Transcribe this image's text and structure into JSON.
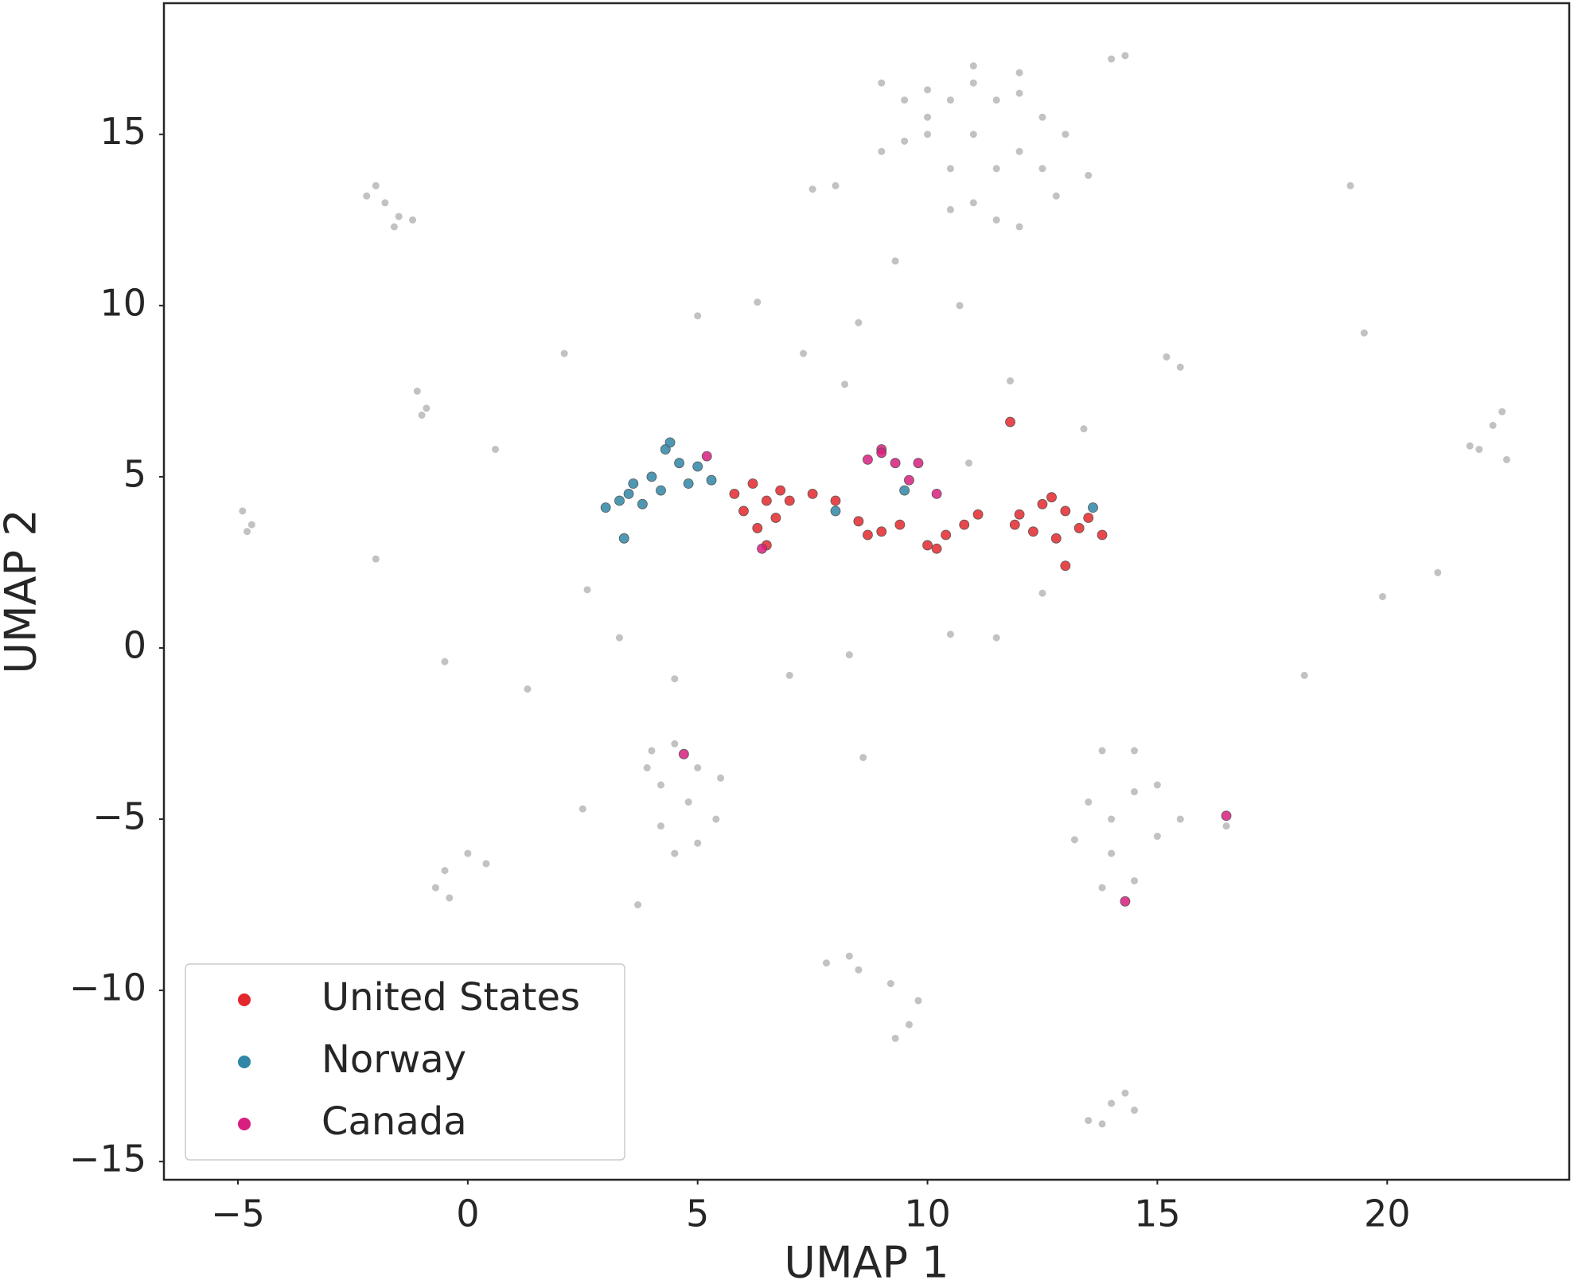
{
  "chart_data": {
    "type": "scatter",
    "xlabel": "UMAP 1",
    "ylabel": "UMAP 2",
    "xlim": [
      -6.61,
      23.96
    ],
    "ylim": [
      -15.53,
      18.83
    ],
    "xticks": [
      {
        "value": -5,
        "label": "−5"
      },
      0,
      5,
      10,
      15,
      20
    ],
    "yticks": [
      {
        "value": -15,
        "label": "−15"
      },
      {
        "value": -10,
        "label": "−10"
      },
      {
        "value": -5,
        "label": "−5"
      },
      0,
      5,
      10,
      15
    ],
    "grid": false,
    "legend": "lower left",
    "series": [
      {
        "color": "#9a9a9a",
        "x": [
          9,
          9.5,
          10,
          10.5,
          11,
          11.5,
          12,
          12.5,
          13,
          12,
          11,
          10,
          9.5,
          9,
          10.5,
          11.5,
          12.5,
          13.5,
          8,
          7.5,
          11,
          11.5,
          12,
          10.5,
          14,
          14.3,
          12.8,
          10,
          11,
          12,
          -2.2,
          -1.8,
          -1.5,
          -1.2,
          -2,
          -1.6,
          -1.1,
          -0.9,
          -1,
          -4.9,
          -4.7,
          -4.8,
          22.3,
          22,
          22.6,
          21.8,
          22.5,
          19.5,
          15.5,
          15.2,
          2.1,
          5,
          6.3,
          7.3,
          8.5,
          8.2,
          9.3,
          10.7,
          11.8,
          13.4,
          10.9,
          2.6,
          3.3,
          -0.5,
          -2,
          4.5,
          7,
          8.3,
          10.5,
          11.5,
          12.5,
          18.2,
          21.1,
          19.9,
          19.2,
          0.6,
          1.3,
          2.5,
          8.6,
          3.7,
          4,
          4.5,
          5,
          5.5,
          4.2,
          4.8,
          5.4,
          4.2,
          5,
          4.5,
          3.9,
          0,
          -0.5,
          -0.7,
          -0.4,
          0.4,
          13.8,
          14.5,
          13.5,
          14,
          14.5,
          15,
          14,
          14.5,
          13.8,
          15.5,
          16.5,
          13.2,
          15,
          7.8,
          8.5,
          9.2,
          9.8,
          9.6,
          9.3,
          8.3,
          13.5,
          14,
          14.5,
          13.8,
          14.3
        ],
        "values": [
          16.5,
          16,
          16.3,
          16,
          16.5,
          16,
          16.2,
          15.5,
          15,
          14.5,
          15,
          15,
          14.8,
          14.5,
          14,
          14,
          14,
          13.8,
          13.5,
          13.4,
          13,
          12.5,
          12.3,
          12.8,
          17.2,
          17.3,
          13.2,
          15.5,
          17,
          16.8,
          13.2,
          13,
          12.6,
          12.5,
          13.5,
          12.3,
          7.5,
          7,
          6.8,
          4,
          3.6,
          3.4,
          6.5,
          5.8,
          5.5,
          5.9,
          6.9,
          9.2,
          8.2,
          8.5,
          8.6,
          9.7,
          10.1,
          8.6,
          9.5,
          7.7,
          11.3,
          10,
          7.8,
          6.4,
          5.4,
          1.7,
          0.3,
          -0.4,
          2.6,
          -0.9,
          -0.8,
          -0.2,
          0.4,
          0.3,
          1.6,
          -0.8,
          2.2,
          1.5,
          13.5,
          5.8,
          -1.2,
          -4.7,
          -3.2,
          -7.5,
          -3,
          -2.8,
          -3.5,
          -3.8,
          -4,
          -4.5,
          -5,
          -5.2,
          -5.7,
          -6,
          -3.5,
          -6,
          -6.5,
          -7,
          -7.3,
          -6.3,
          -3,
          -3,
          -4.5,
          -5,
          -4.2,
          -5.5,
          -6,
          -6.8,
          -7,
          -5,
          -5.2,
          -5.6,
          -4,
          -9.2,
          -9.4,
          -9.8,
          -10.3,
          -11,
          -11.4,
          -9,
          -13.8,
          -13.3,
          -13.5,
          -13.9,
          -13
        ]
      },
      {
        "name": "United States",
        "color": "#e3282d",
        "x": [
          5.8,
          6.2,
          6.5,
          6,
          6.7,
          6.3,
          6.5,
          7,
          7.5,
          8,
          6.8,
          8.5,
          9,
          9.4,
          8.7,
          10,
          10.4,
          10.8,
          11.1,
          10.2,
          12,
          12.5,
          13,
          13.5,
          13.8,
          12.3,
          12.8,
          13.3,
          13,
          12.7,
          11.9,
          11.8
        ],
        "values": [
          4.5,
          4.8,
          4.3,
          4,
          3.8,
          3.5,
          3,
          4.3,
          4.5,
          4.3,
          4.6,
          3.7,
          3.4,
          3.6,
          3.3,
          3,
          3.3,
          3.6,
          3.9,
          2.9,
          3.9,
          4.2,
          4,
          3.8,
          3.3,
          3.4,
          3.2,
          3.5,
          2.4,
          4.4,
          3.6,
          6.6
        ]
      },
      {
        "name": "Norway",
        "color": "#2f86a6",
        "x": [
          3,
          3.5,
          4,
          4.3,
          4.6,
          4.2,
          3.8,
          3.3,
          4.8,
          5,
          4.4,
          3.6,
          3.4,
          5.3,
          13.6,
          9.5,
          8
        ],
        "values": [
          4.1,
          4.5,
          5,
          5.8,
          5.4,
          4.6,
          4.2,
          4.3,
          4.8,
          5.3,
          6,
          4.8,
          3.2,
          4.9,
          4.1,
          4.6,
          4
        ]
      },
      {
        "name": "Canada",
        "color": "#d81e7e",
        "x": [
          8.7,
          9,
          9.3,
          9.8,
          9,
          9.6,
          10.2,
          6.4,
          5.2,
          4.7,
          14.3,
          16.5
        ],
        "values": [
          5.5,
          5.8,
          5.4,
          5.4,
          5.7,
          4.9,
          4.5,
          2.9,
          5.6,
          -3.1,
          -7.4,
          -4.9
        ]
      }
    ]
  }
}
